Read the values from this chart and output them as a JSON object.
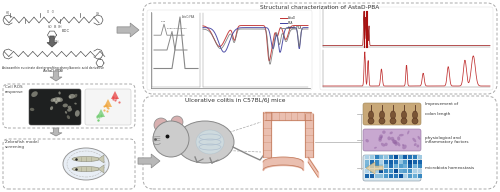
{
  "bg_color": "#ffffff",
  "top_right_title": "Structural characterization of AstaD-PBA",
  "bottom_right_title": "Ulcerative colitis in C57BL/6J mice",
  "cell_ros_label": "Cell ROS\nresponse",
  "zebrafish_label": "Zebrafish model\nscreening",
  "top_label1": "Astaxanthin succinate diestergrafting phenylboronic acid derivative",
  "top_label2": "(AstaD-PBA)",
  "edc_label": "EDC",
  "improvement_of": "Improvement of",
  "colon_length": "colon length",
  "physio_label": "physiological and\ninflammatory factors",
  "microbiota_label": "microbiota homeostasis",
  "arrow_fill": "#b0b0b0",
  "arrow_edge": "#888888",
  "dashed_color": "#aaaaaa",
  "ir_red": "#c03030",
  "ir_blue": "#4040a0",
  "ir_gray": "#707070",
  "nmr_red": "#c03030",
  "nmr_red2": "#a02020",
  "ir_legend": [
    "AstaD",
    "PBA",
    "AstaD-PBA"
  ],
  "ir_legend_colors": [
    "#c03030",
    "#4040a0",
    "#888888"
  ],
  "mouse_body": "#cccccc",
  "mouse_edge": "#888888",
  "colon_fill": "#e8b8a8",
  "colon_edge": "#c07858",
  "colon_straight_fill": "#f0c0b0",
  "purple_fill": "#c8a8d0",
  "brown_fill": "#c8a878",
  "blue_grid": "#a0b8d0"
}
